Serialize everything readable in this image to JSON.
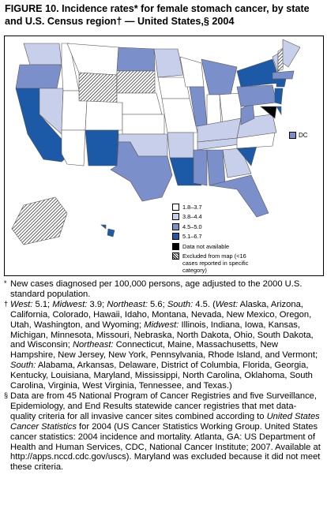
{
  "title": "FIGURE 10. Incidence rates* for female stomach cancer, by state and U.S. Census region† — United States,§ 2004",
  "map": {
    "dc_label": "DC",
    "legend": [
      {
        "label": "1.8–3.7",
        "color": "#ffffff"
      },
      {
        "label": "3.8–4.4",
        "color": "#c8cfea"
      },
      {
        "label": "4.5–5.0",
        "color": "#7b8fcb"
      },
      {
        "label": "5.1–6.7",
        "color": "#1c5aa8"
      },
      {
        "label": "Data not available",
        "color": "#000000"
      },
      {
        "label": "Excluded from map (<16 cases reported in specific category)",
        "pattern": "hatch"
      }
    ]
  },
  "footnotes": [
    {
      "marker": "*",
      "segments": [
        {
          "text": "New cases diagnosed per 100,000 persons, age adjusted to the 2000 U.S. standard population.",
          "italic": false
        }
      ]
    },
    {
      "marker": "†",
      "segments": [
        {
          "text": "West:",
          "italic": true
        },
        {
          "text": " 5.1; ",
          "italic": false
        },
        {
          "text": "Midwest:",
          "italic": true
        },
        {
          "text": " 3.9; ",
          "italic": false
        },
        {
          "text": "Northeast:",
          "italic": true
        },
        {
          "text": " 5.6; ",
          "italic": false
        },
        {
          "text": "South:",
          "italic": true
        },
        {
          "text": " 4.5. (",
          "italic": false
        },
        {
          "text": "West:",
          "italic": true
        },
        {
          "text": " Alaska, Arizona, California, Colorado, Hawaii, Idaho, Montana, Nevada, New Mexico, Oregon, Utah, Washington, and Wyoming; ",
          "italic": false
        },
        {
          "text": "Midwest:",
          "italic": true
        },
        {
          "text": " Illinois, Indiana, Iowa, Kansas, Michigan, Minnesota, Missouri, Nebraska, North Dakota, Ohio, South Dakota, and Wisconsin; ",
          "italic": false
        },
        {
          "text": "Northeast:",
          "italic": true
        },
        {
          "text": " Connecticut, Maine, Massachusetts, New Hampshire, New Jersey, New York, Pennsylvania, Rhode Island, and Vermont; ",
          "italic": false
        },
        {
          "text": "South:",
          "italic": true
        },
        {
          "text": " Alabama, Arkansas, Delaware, District of Columbia, Florida, Georgia, Kentucky, Louisiana, Maryland, Mississippi, North Carolina, Oklahoma, South Carolina, Virginia, West Virginia, Tennessee, and Texas.)",
          "italic": false
        }
      ]
    },
    {
      "marker": "§",
      "segments": [
        {
          "text": "Data are from 45 National Program of Cancer Registries and five Surveillance, Epidemiology, and End Results statewide cancer registries that met data-quality criteria for all invasive cancer sites combined according to ",
          "italic": false
        },
        {
          "text": "United States Cancer Statistics",
          "italic": true
        },
        {
          "text": " for 2004 (US Cancer Statistics Working Group. United States cancer statistics: 2004 incidence and mortality. Atlanta, GA: US Department of Health and Human Services, CDC, National Cancer Institute; 2007. Available at http://apps.nccd.cdc.gov/uscs). Maryland was excluded because it did not meet these criteria.",
          "italic": false
        }
      ]
    }
  ]
}
